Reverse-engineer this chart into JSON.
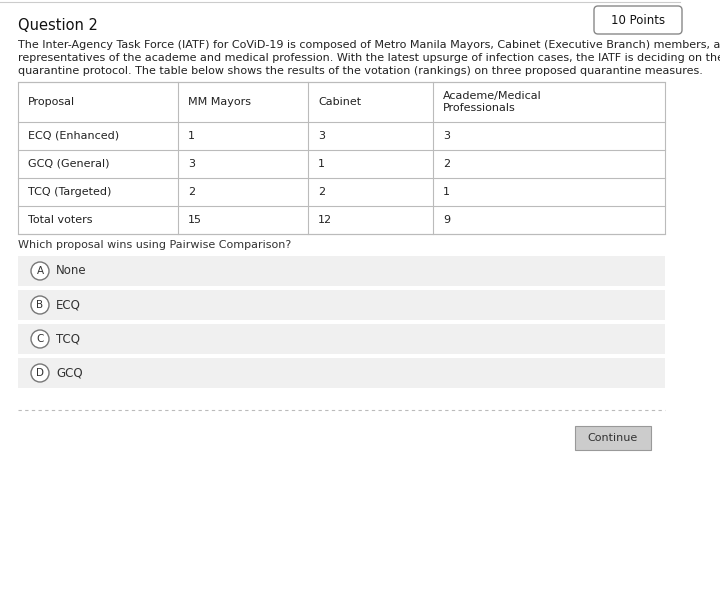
{
  "title": "Question 2",
  "points": "10 Points",
  "description_line1": "The Inter-Agency Task Force (IATF) for CoViD-19 is composed of Metro Manila Mayors, Cabinet (Executive Branch) members, and",
  "description_line2": "representatives of the academe and medical profession. With the latest upsurge of infection cases, the IATF is deciding on the next",
  "description_line3": "quarantine protocol. The table below shows the results of the votation (rankings) on three proposed quarantine measures.",
  "question": "Which proposal wins using Pairwise Comparison?",
  "table_headers": [
    "Proposal",
    "MM Mayors",
    "Cabinet",
    "Academe/Medical\nProfessionals"
  ],
  "table_rows": [
    [
      "ECQ (Enhanced)",
      "1",
      "3",
      "3"
    ],
    [
      "GCQ (General)",
      "3",
      "1",
      "2"
    ],
    [
      "TCQ (Targeted)",
      "2",
      "2",
      "1"
    ],
    [
      "Total voters",
      "15",
      "12",
      "9"
    ]
  ],
  "choices": [
    {
      "letter": "A",
      "text": "None"
    },
    {
      "letter": "B",
      "text": "ECQ"
    },
    {
      "letter": "C",
      "text": "TCQ"
    },
    {
      "letter": "D",
      "text": "GCQ"
    }
  ],
  "continue_btn": "Continue",
  "bg_color": "#ffffff",
  "table_border_color": "#bbbbbb",
  "choice_bg_color": "#f0f0f0",
  "title_fontsize": 10.5,
  "body_fontsize": 8,
  "table_fontsize": 8,
  "points_fontsize": 8.5,
  "dashed_line_color": "#bbbbbb",
  "continue_btn_color": "#cccccc",
  "continue_btn_text_color": "#333333"
}
